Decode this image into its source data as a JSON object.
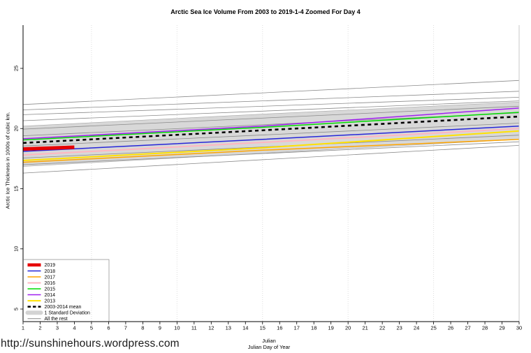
{
  "page": {
    "title": "Arctic Sea Ice Volume From 2003 to 2019-1-4 Zoomed For Day 4",
    "ylabel": "Arctic Ice Thickness in 1000s of cubic km.",
    "xlabel_line1": "Julian",
    "xlabel_line2": "Julian Day of Year",
    "url_watermark": "http://sunshinehours.wordpress.com"
  },
  "chart_data": {
    "type": "line",
    "title": "Arctic Sea Ice Volume From 2003 to 2019-1-4 Zoomed For Day 4",
    "xlabel": "Julian Day of Year",
    "ylabel": "Arctic Ice Thickness in 1000s of cubic km.",
    "xlim": [
      1,
      30
    ],
    "ylim": [
      4,
      28.6
    ],
    "x_ticks": [
      1,
      2,
      3,
      4,
      5,
      6,
      7,
      8,
      9,
      10,
      11,
      12,
      13,
      14,
      15,
      16,
      17,
      18,
      19,
      20,
      21,
      22,
      23,
      24,
      25,
      26,
      27,
      28,
      29,
      30
    ],
    "y_ticks": [
      5,
      10,
      15,
      20,
      25
    ],
    "grid_x": [
      5,
      10,
      15,
      20,
      25,
      30
    ],
    "legend_position": "bottom-left",
    "band": {
      "name": "1 Standard Deviation",
      "color": "#d8d8d8",
      "edge_color": "#a8a8a8",
      "x": [
        1,
        15,
        30
      ],
      "upper": [
        20.2,
        21.2,
        22.2
      ],
      "lower": [
        16.85,
        17.95,
        19.1
      ]
    },
    "mean": {
      "name": "2003-2014 mean",
      "color": "#000000",
      "style": "dashed",
      "x": [
        1,
        15,
        30
      ],
      "values": [
        18.8,
        19.85,
        21.0
      ]
    },
    "series": [
      {
        "name": "2019",
        "color": "#e60000",
        "width": 5,
        "x": [
          1,
          2,
          3,
          4
        ],
        "values": [
          18.3,
          18.35,
          18.4,
          18.45
        ]
      },
      {
        "name": "2018",
        "color": "#2626d8",
        "width": 1.5,
        "x": [
          1,
          15,
          30
        ],
        "values": [
          18.1,
          19.1,
          20.2
        ]
      },
      {
        "name": "2017",
        "color": "#ffa500",
        "width": 1.5,
        "x": [
          1,
          15,
          30
        ],
        "values": [
          17.2,
          18.2,
          19.1
        ]
      },
      {
        "name": "2016",
        "color": "#ffb6c1",
        "width": 2,
        "x": [
          1,
          15,
          30
        ],
        "values": [
          17.8,
          18.85,
          20.0
        ]
      },
      {
        "name": "2015",
        "color": "#00db00",
        "width": 1.5,
        "x": [
          1,
          15,
          30
        ],
        "values": [
          19.05,
          20.1,
          21.35
        ]
      },
      {
        "name": "2014",
        "color": "#a020f0",
        "width": 1.5,
        "x": [
          1,
          15,
          30
        ],
        "values": [
          19.15,
          20.2,
          21.7
        ]
      },
      {
        "name": "2013",
        "color": "#ffe100",
        "width": 2,
        "x": [
          1,
          15,
          30
        ],
        "values": [
          17.35,
          18.4,
          19.8
        ]
      }
    ],
    "all_the_rest": {
      "name": "All the rest",
      "color": "#8a8a8a",
      "endpoints_x": [
        1,
        30
      ],
      "lines": [
        [
          22.0,
          24.0
        ],
        [
          21.55,
          23.1
        ],
        [
          21.15,
          22.6
        ],
        [
          20.65,
          22.3
        ],
        [
          19.95,
          21.85
        ],
        [
          19.4,
          21.3
        ],
        [
          18.55,
          20.45
        ],
        [
          17.55,
          19.45
        ],
        [
          17.0,
          18.9
        ],
        [
          16.3,
          18.6
        ]
      ]
    },
    "legend": [
      {
        "label": "2019",
        "color": "#e60000",
        "kind": "line",
        "width": 4.5
      },
      {
        "label": "2018",
        "color": "#2626d8",
        "kind": "line",
        "width": 1.5
      },
      {
        "label": "2017",
        "color": "#ffa500",
        "kind": "line",
        "width": 1.5
      },
      {
        "label": "2016",
        "color": "#ffb6c1",
        "kind": "line",
        "width": 2
      },
      {
        "label": "2015",
        "color": "#00db00",
        "kind": "line",
        "width": 1.5
      },
      {
        "label": "2014",
        "color": "#a020f0",
        "kind": "line",
        "width": 1.5
      },
      {
        "label": "2013",
        "color": "#ffe100",
        "kind": "line",
        "width": 2
      },
      {
        "label": "2003-2014 mean",
        "color": "#000000",
        "kind": "dashed",
        "width": 2.5
      },
      {
        "label": "1 Standard Deviation",
        "color": "#d3d3d3",
        "kind": "band",
        "width": 6
      },
      {
        "label": "All the rest",
        "color": "#8a8a8a",
        "kind": "line",
        "width": 1
      }
    ]
  }
}
